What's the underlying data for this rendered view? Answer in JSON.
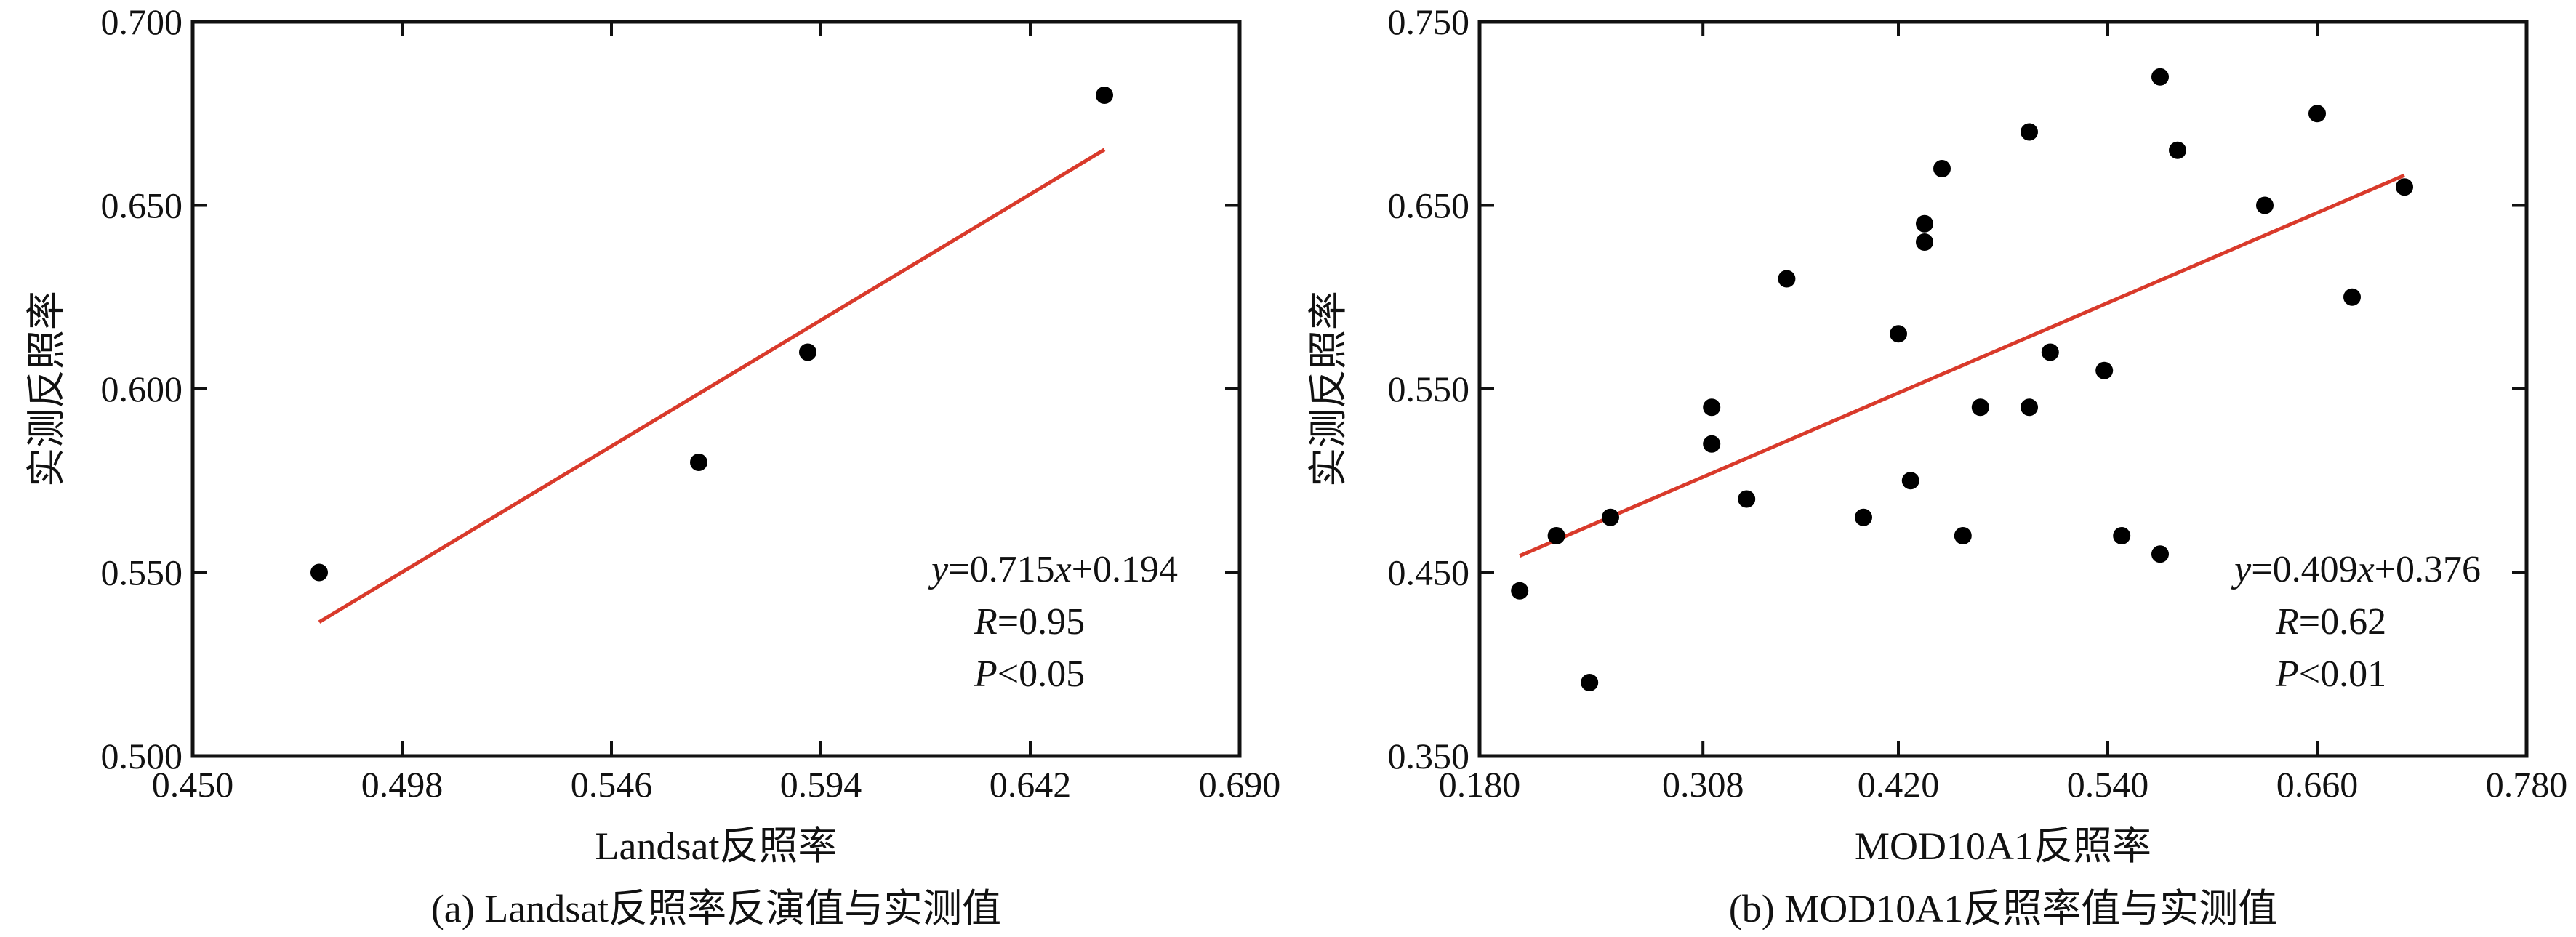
{
  "chart_data": [
    {
      "type": "scatter",
      "xlabel": "Landsat反照率",
      "ylabel": "实测反照率",
      "caption": "(a) Landsat反照率反演值与实测值",
      "xlim": [
        0.45,
        0.69
      ],
      "ylim": [
        0.5,
        0.7
      ],
      "xticks": [
        "0.450",
        "0.498",
        "0.546",
        "0.594",
        "0.642",
        "0.690"
      ],
      "yticks": [
        "0.500",
        "0.550",
        "0.600",
        "0.650",
        "0.700"
      ],
      "points": [
        {
          "x": 0.479,
          "y": 0.55
        },
        {
          "x": 0.566,
          "y": 0.58
        },
        {
          "x": 0.591,
          "y": 0.61
        },
        {
          "x": 0.659,
          "y": 0.68
        }
      ],
      "fit": {
        "slope": 0.715,
        "intercept": 0.194,
        "x_range": [
          0.479,
          0.659
        ],
        "color": "#d93a2b"
      },
      "equation": {
        "y": "y",
        "eq_rest": "=0.715",
        "x": "x",
        "tail": "+0.194"
      },
      "r_text": {
        "sym": "R",
        "val": "=0.95"
      },
      "p_text": {
        "sym": "P",
        "val": "<0.05"
      },
      "grid": false,
      "point_color": "#000000"
    },
    {
      "type": "scatter",
      "xlabel": "MOD10A1反照率",
      "ylabel": "实测反照率",
      "caption": "(b) MOD10A1反照率值与实测值",
      "xlim": [
        0.18,
        0.78
      ],
      "ylim": [
        0.35,
        0.75
      ],
      "xticks": [
        "0.180",
        "0.308",
        "0.420",
        "0.540",
        "0.660",
        "0.780"
      ],
      "yticks": [
        "0.350",
        "0.450",
        "0.550",
        "0.650",
        "0.750"
      ],
      "points": [
        {
          "x": 0.203,
          "y": 0.44
        },
        {
          "x": 0.224,
          "y": 0.47
        },
        {
          "x": 0.243,
          "y": 0.39
        },
        {
          "x": 0.255,
          "y": 0.48
        },
        {
          "x": 0.313,
          "y": 0.54
        },
        {
          "x": 0.313,
          "y": 0.52
        },
        {
          "x": 0.333,
          "y": 0.49
        },
        {
          "x": 0.356,
          "y": 0.61
        },
        {
          "x": 0.4,
          "y": 0.48
        },
        {
          "x": 0.42,
          "y": 0.58
        },
        {
          "x": 0.427,
          "y": 0.5
        },
        {
          "x": 0.435,
          "y": 0.64
        },
        {
          "x": 0.435,
          "y": 0.63
        },
        {
          "x": 0.445,
          "y": 0.67
        },
        {
          "x": 0.457,
          "y": 0.47
        },
        {
          "x": 0.467,
          "y": 0.54
        },
        {
          "x": 0.495,
          "y": 0.69
        },
        {
          "x": 0.495,
          "y": 0.54
        },
        {
          "x": 0.507,
          "y": 0.57
        },
        {
          "x": 0.538,
          "y": 0.56
        },
        {
          "x": 0.548,
          "y": 0.47
        },
        {
          "x": 0.57,
          "y": 0.72
        },
        {
          "x": 0.57,
          "y": 0.46
        },
        {
          "x": 0.58,
          "y": 0.68
        },
        {
          "x": 0.63,
          "y": 0.65
        },
        {
          "x": 0.66,
          "y": 0.7
        },
        {
          "x": 0.68,
          "y": 0.6
        },
        {
          "x": 0.71,
          "y": 0.66
        }
      ],
      "fit": {
        "slope": 0.409,
        "intercept": 0.376,
        "x_range": [
          0.203,
          0.71
        ],
        "color": "#d93a2b"
      },
      "equation": {
        "y": "y",
        "eq_rest": "=0.409",
        "x": "x",
        "tail": "+0.376"
      },
      "r_text": {
        "sym": "R",
        "val": "=0.62"
      },
      "p_text": {
        "sym": "P",
        "val": "<0.01"
      },
      "grid": false,
      "point_color": "#000000"
    }
  ]
}
